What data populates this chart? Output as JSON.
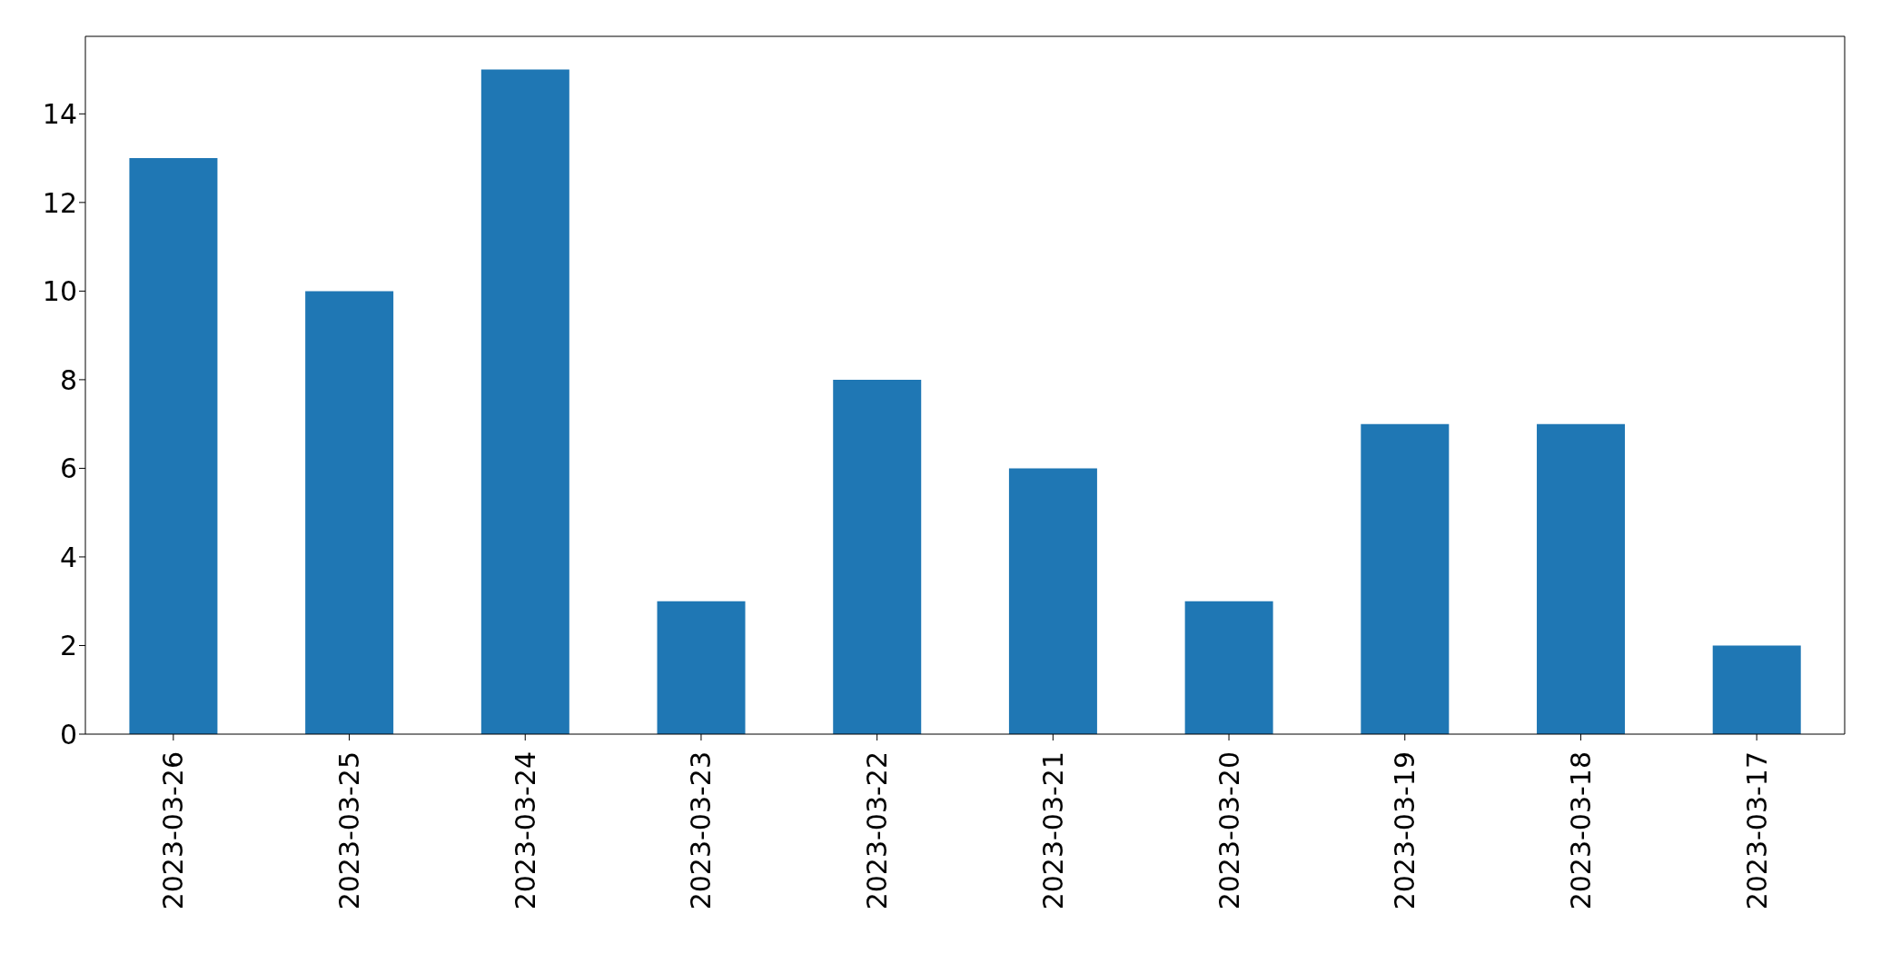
{
  "chart_data": {
    "type": "bar",
    "categories": [
      "2023-03-26",
      "2023-03-25",
      "2023-03-24",
      "2023-03-23",
      "2023-03-22",
      "2023-03-21",
      "2023-03-20",
      "2023-03-19",
      "2023-03-18",
      "2023-03-17"
    ],
    "values": [
      13,
      10,
      15,
      3,
      8,
      6,
      3,
      7,
      7,
      2
    ],
    "color": "#1f77b4",
    "ylim": [
      0,
      15.75
    ],
    "yticks": [
      0,
      2,
      4,
      6,
      8,
      10,
      12,
      14
    ],
    "grid": false,
    "legend": false
  }
}
